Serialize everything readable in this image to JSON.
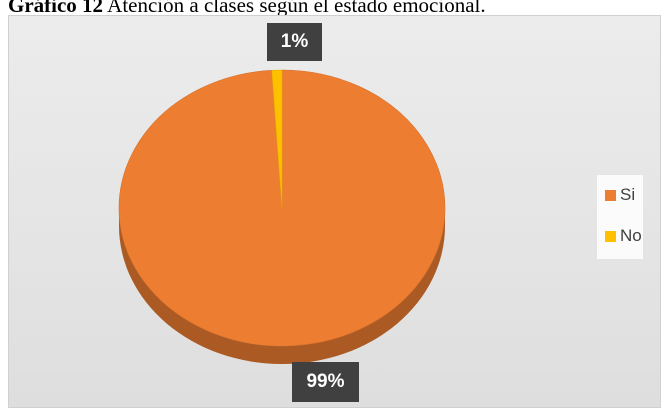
{
  "caption": {
    "prefix": "Gráfico 12",
    "text": "Atención a clases según el estado emocional."
  },
  "chart_data": {
    "type": "pie",
    "title": "",
    "categories": [
      "Si",
      "No"
    ],
    "values": [
      99,
      1
    ],
    "data_labels": [
      "99%",
      "1%"
    ],
    "colors": [
      "#ED7D31",
      "#FFC000"
    ],
    "legend_position": "right",
    "style": "3d"
  }
}
